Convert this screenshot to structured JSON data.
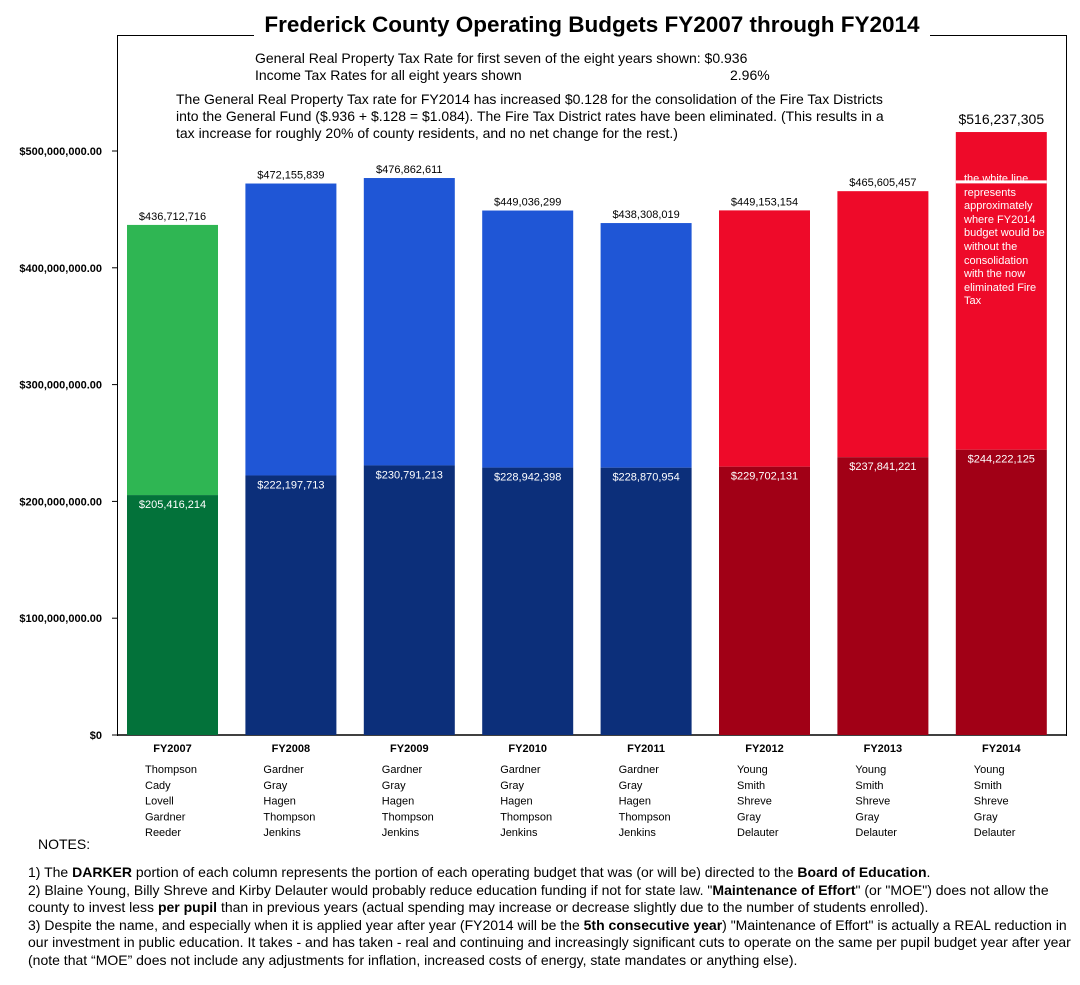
{
  "title": "Frederick County Operating Budgets FY2007 through FY2014",
  "tax_info": {
    "property_label": "General Real Property Tax Rate for first seven of the eight years shown:",
    "property_value": "$0.936",
    "income_label": "Income Tax Rates for all eight years shown",
    "income_value": "2.96%",
    "consolidation_note": "The General Real Property Tax rate for FY2014 has increased $0.128 for the consolidation of the Fire Tax Districts into the General Fund ($.936 + $.128 = $1.084). The Fire Tax District rates have been eliminated. (This results in a tax increase for roughly 20% of county residents, and no net change for the rest.)"
  },
  "chart_data": {
    "type": "bar",
    "stacked": true,
    "categories": [
      "FY2007",
      "FY2008",
      "FY2009",
      "FY2010",
      "FY2011",
      "FY2012",
      "FY2013",
      "FY2014"
    ],
    "series": [
      {
        "values": [
          205416214,
          222197713,
          230791213,
          228942398,
          228870954,
          229702131,
          237841221,
          244222125
        ]
      },
      {
        "values": [
          231296502,
          249958126,
          246071398,
          220093901,
          209437065,
          219451023,
          227764236,
          272015180
        ]
      }
    ],
    "total_labels": [
      "$436,712,716",
      "$472,155,839",
      "$476,862,611",
      "$449,036,299",
      "$438,308,019",
      "$449,153,154",
      "$465,605,457",
      "$516,237,305"
    ],
    "totals": [
      436712716,
      472155839,
      476862611,
      449036299,
      438308019,
      449153154,
      465605457,
      516237305
    ],
    "education_labels": [
      "$205,416,214",
      "$222,197,713",
      "$230,791,213",
      "$228,942,398",
      "$228,870,954",
      "$229,702,131",
      "$237,841,221",
      "$244,222,125"
    ],
    "ylim": [
      0,
      500000000
    ],
    "yticks": [
      0,
      100000000,
      200000000,
      300000000,
      400000000,
      500000000
    ],
    "ytick_labels": [
      "$0",
      "$100,000,000.00",
      "$200,000,000.00",
      "$300,000,000.00",
      "$400,000,000.00",
      "$500,000,000.00"
    ],
    "without_consolidation_fy2014": 471000000,
    "colors": {
      "light": [
        "#2fb653",
        "#1f56d6",
        "#1f56d6",
        "#1f56d6",
        "#1f56d6",
        "#ee0a29",
        "#ee0a29",
        "#ee0a29"
      ],
      "dark": [
        "#03723a",
        "#0c2f7a",
        "#0c2f7a",
        "#0c2f7a",
        "#0c2f7a",
        "#a10016",
        "#a10016",
        "#a10016"
      ]
    },
    "fy2014_annotation": "the white line represents approximately where FY2014 budget would be without the consolidation with the now eliminated Fire Tax",
    "commissioners": [
      [
        "Thompson",
        "Cady",
        "Lovell",
        "Gardner",
        "Reeder"
      ],
      [
        "Gardner",
        "Gray",
        "Hagen",
        "Thompson",
        "Jenkins"
      ],
      [
        "Gardner",
        "Gray",
        "Hagen",
        "Thompson",
        "Jenkins"
      ],
      [
        "Gardner",
        "Gray",
        "Hagen",
        "Thompson",
        "Jenkins"
      ],
      [
        "Gardner",
        "Gray",
        "Hagen",
        "Thompson",
        "Jenkins"
      ],
      [
        "Young",
        "Smith",
        "Shreve",
        "Gray",
        "Delauter"
      ],
      [
        "Young",
        "Smith",
        "Shreve",
        "Gray",
        "Delauter"
      ],
      [
        "Young",
        "Smith",
        "Shreve",
        "Gray",
        "Delauter"
      ]
    ]
  },
  "notes": {
    "heading": "NOTES:",
    "n1_a": "1) The ",
    "n1_b": "DARKER",
    "n1_c": " portion of each column represents the portion of each operating budget that was (or will be) directed to the ",
    "n1_d": "Board of Education",
    "n1_e": ".",
    "n2_a": "2) Blaine Young, Billy Shreve and Kirby Delauter would probably reduce education funding if not for state law. \"",
    "n2_b": "Maintenance of Effort",
    "n2_c": "\" (or \"MOE\") does not allow the county to invest less ",
    "n2_d": "per pupil",
    "n2_e": " than in previous years (actual spending may increase or decrease slightly due to the number of students enrolled).",
    "n3_a": "3) Despite the name, and especially when it is applied year after year (FY2014 will be the ",
    "n3_b": "5th consecutive year",
    "n3_c": ") \"Maintenance of Effort\" is actually a REAL reduction in our investment in public education. It takes - and has taken - real and continuing and increasingly significant cuts to operate on the same per pupil budget year after year (note that “MOE” does not include any adjustments for inflation, increased costs of energy, state mandates or anything else)."
  }
}
